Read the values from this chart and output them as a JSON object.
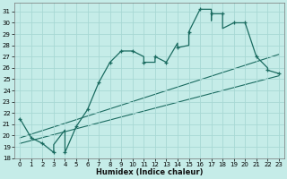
{
  "xlabel": "Humidex (Indice chaleur)",
  "bg_color": "#c5ece8",
  "grid_color": "#a8d8d4",
  "line_color": "#1a6b60",
  "xlim": [
    -0.5,
    23.5
  ],
  "ylim": [
    18,
    31.8
  ],
  "yticks": [
    18,
    19,
    20,
    21,
    22,
    23,
    24,
    25,
    26,
    27,
    28,
    29,
    30,
    31
  ],
  "xticks": [
    0,
    1,
    2,
    3,
    4,
    5,
    6,
    7,
    8,
    9,
    10,
    11,
    12,
    13,
    14,
    15,
    16,
    17,
    18,
    19,
    20,
    21,
    22,
    23
  ],
  "line1_x": [
    0,
    1,
    2,
    3,
    3,
    4,
    4,
    4,
    5,
    6,
    7,
    8,
    9,
    10,
    11,
    11,
    12,
    12,
    13,
    14,
    14,
    15,
    15,
    16,
    16,
    17,
    17,
    17,
    18,
    18,
    19,
    20,
    21,
    22,
    22,
    23
  ],
  "line1_y": [
    21.5,
    19.8,
    19.3,
    18.5,
    19.2,
    20.5,
    19.2,
    18.5,
    20.8,
    22.3,
    24.7,
    26.5,
    27.5,
    27.5,
    27.0,
    26.5,
    26.5,
    27.0,
    26.5,
    28.2,
    27.8,
    28.0,
    29.2,
    31.2,
    31.2,
    31.2,
    30.2,
    30.8,
    30.8,
    29.5,
    30.0,
    30.0,
    27.0,
    26.0,
    25.8,
    25.5
  ],
  "markers_x": [
    0,
    1,
    2,
    3,
    4,
    5,
    6,
    7,
    8,
    9,
    10,
    11,
    12,
    13,
    14,
    15,
    16,
    17,
    18,
    19,
    20,
    21,
    22,
    23
  ],
  "markers_y": [
    21.5,
    19.8,
    19.3,
    18.5,
    18.5,
    20.8,
    22.3,
    24.7,
    26.5,
    27.5,
    27.5,
    26.5,
    27.0,
    26.5,
    27.8,
    29.2,
    31.2,
    30.8,
    30.8,
    30.0,
    30.0,
    27.0,
    25.8,
    25.5
  ],
  "line2_x": [
    0,
    23
  ],
  "line2_y": [
    19.8,
    27.2
  ],
  "line3_x": [
    0,
    23
  ],
  "line3_y": [
    19.3,
    25.3
  ]
}
